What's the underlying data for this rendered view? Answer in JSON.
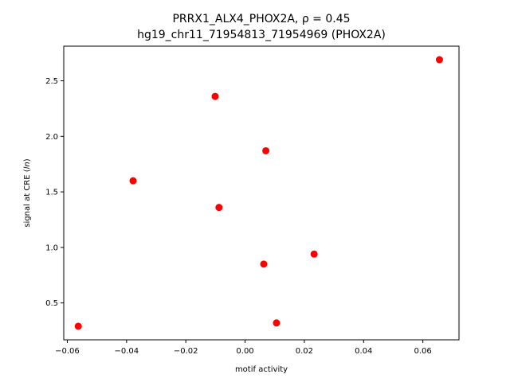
{
  "chart_data": {
    "type": "scatter",
    "title_line1": "PRRX1_ALX4_PHOX2A, ρ = 0.45",
    "title_line2": "hg19_chr11_71954813_71954969 (PHOX2A)",
    "xlabel": "motif activity",
    "ylabel": "signal at CRE (ln)",
    "ylabel_parts": {
      "prefix": "signal at CRE (",
      "italic": "ln",
      "suffix": ")"
    },
    "xlim": [
      -0.0612,
      0.0722
    ],
    "ylim": [
      0.168,
      2.812
    ],
    "xticks": [
      {
        "value": -0.06,
        "label": "−0.06"
      },
      {
        "value": -0.04,
        "label": "−0.04"
      },
      {
        "value": -0.02,
        "label": "−0.02"
      },
      {
        "value": 0.0,
        "label": "0.00"
      },
      {
        "value": 0.02,
        "label": "0.02"
      },
      {
        "value": 0.04,
        "label": "0.04"
      },
      {
        "value": 0.06,
        "label": "0.06"
      }
    ],
    "yticks": [
      {
        "value": 0.5,
        "label": "0.5"
      },
      {
        "value": 1.0,
        "label": "1.0"
      },
      {
        "value": 1.5,
        "label": "1.5"
      },
      {
        "value": 2.0,
        "label": "2.0"
      },
      {
        "value": 2.5,
        "label": "2.5"
      }
    ],
    "grid": false,
    "marker_color": "#ff0000",
    "points": [
      {
        "x": -0.0563,
        "y": 0.29
      },
      {
        "x": -0.0378,
        "y": 1.6
      },
      {
        "x": -0.0101,
        "y": 2.36
      },
      {
        "x": -0.0088,
        "y": 1.36
      },
      {
        "x": 0.0063,
        "y": 0.85
      },
      {
        "x": 0.007,
        "y": 1.87
      },
      {
        "x": 0.0106,
        "y": 0.32
      },
      {
        "x": 0.0233,
        "y": 0.94
      },
      {
        "x": 0.0656,
        "y": 2.69
      }
    ]
  }
}
